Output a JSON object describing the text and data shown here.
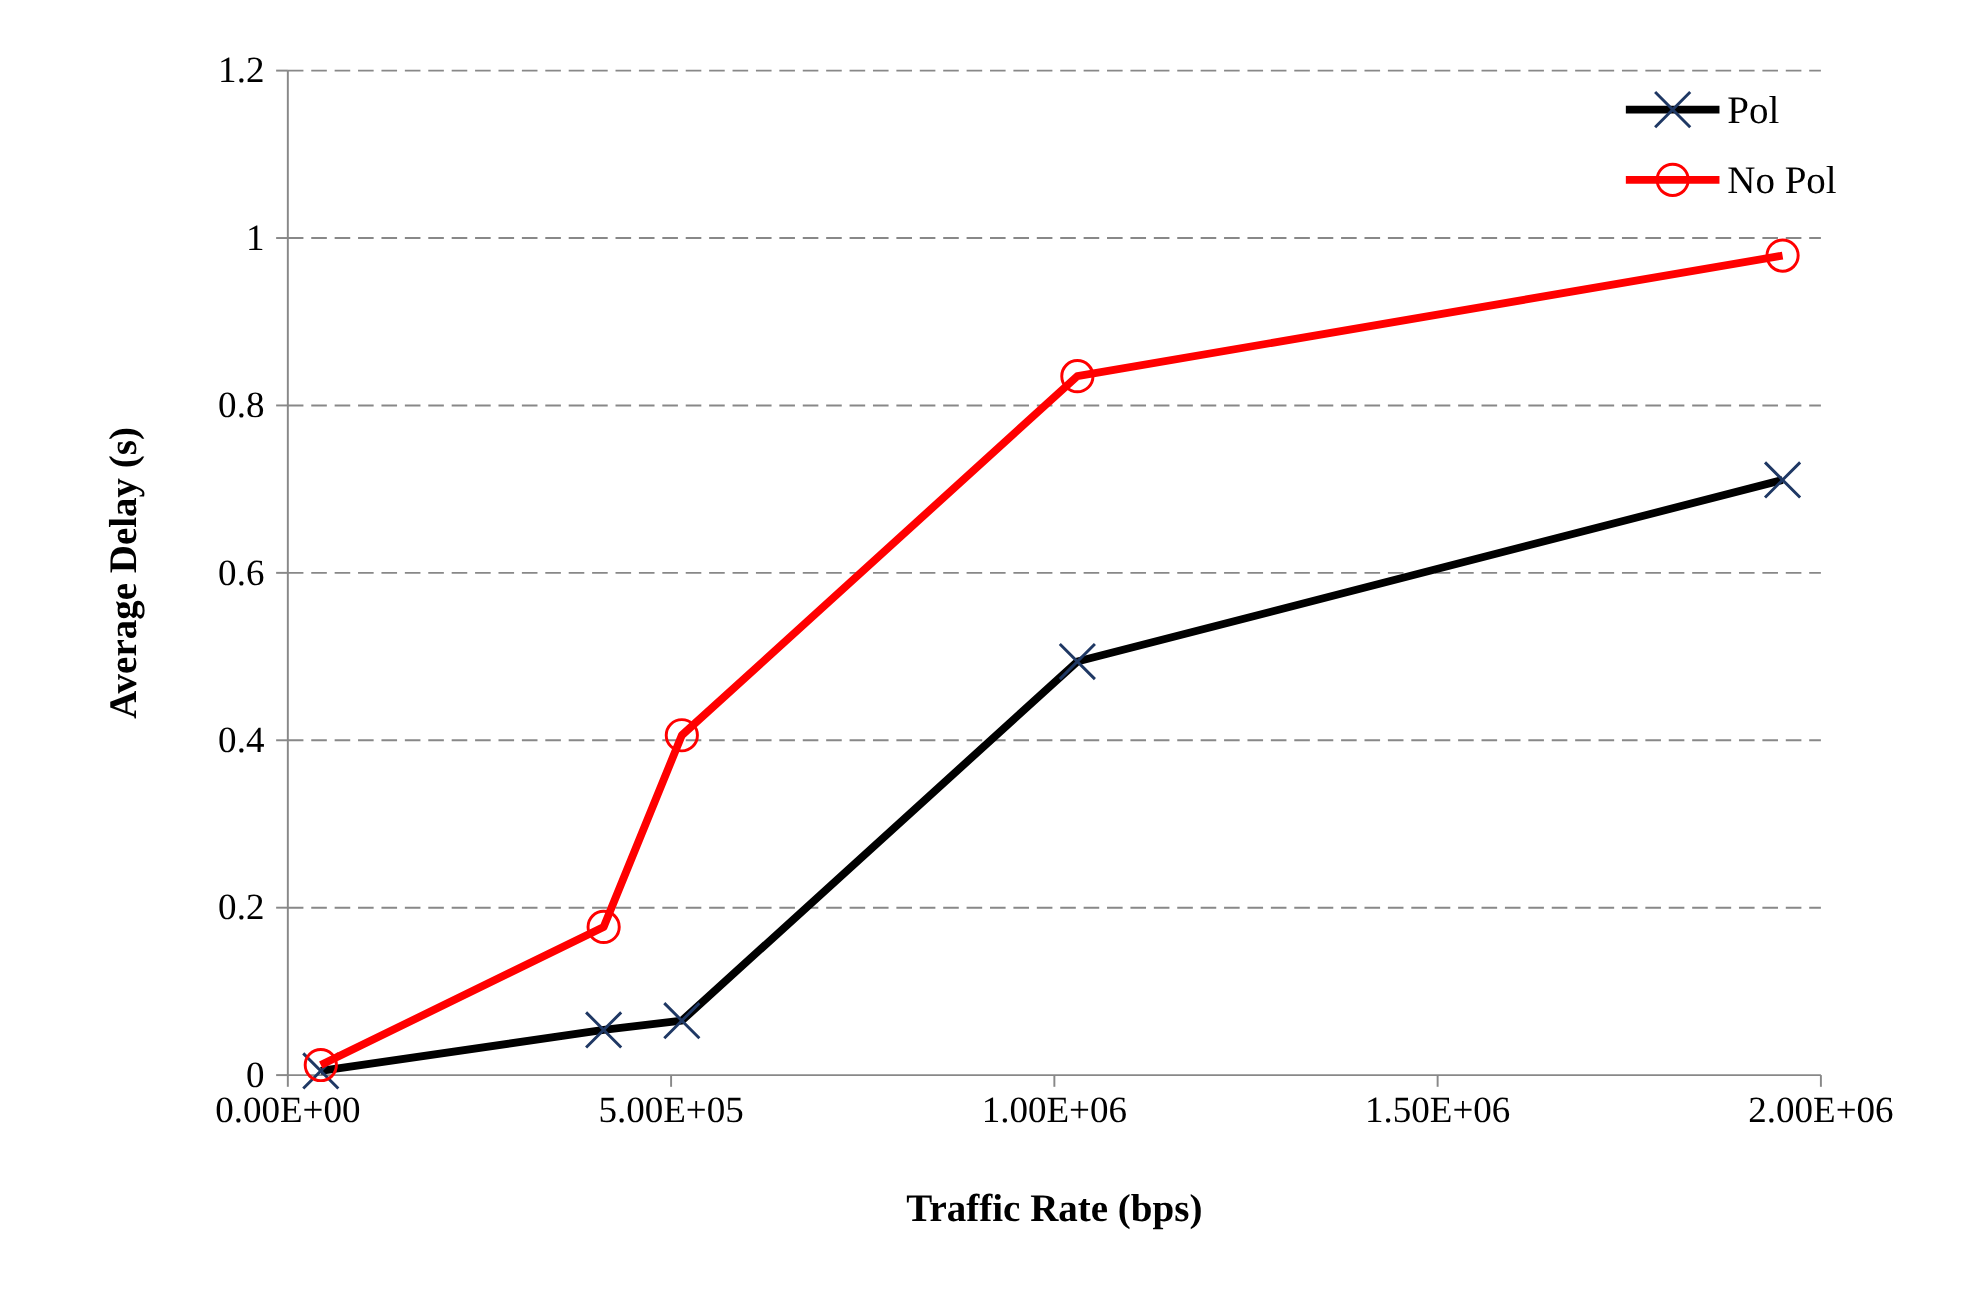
{
  "chart_data": {
    "type": "line",
    "xlabel": "Traffic Rate (bps)",
    "ylabel": "Average Delay (s)",
    "xlim": [
      0,
      2000000
    ],
    "xticks": [
      {
        "value": 0,
        "label": "0.00E+00"
      },
      {
        "value": 500000,
        "label": "5.00E+05"
      },
      {
        "value": 1000000,
        "label": "1.00E+06"
      },
      {
        "value": 1500000,
        "label": "1.50E+06"
      },
      {
        "value": 2000000,
        "label": "2.00E+06"
      }
    ],
    "ylim": [
      0,
      1.2
    ],
    "yticks": [
      0,
      0.2,
      0.4,
      0.6,
      0.8,
      1,
      1.2
    ],
    "grid": "y",
    "legend": "top right",
    "series": [
      {
        "name": "Pol",
        "color": "#000000",
        "marker": "cross",
        "x": [
          43000,
          412000,
          514000,
          1030000,
          1950000
        ],
        "values": [
          0.005,
          0.054,
          0.065,
          0.494,
          0.711
        ]
      },
      {
        "name": "No Pol",
        "color": "#ff0000",
        "marker": "circle",
        "x": [
          43000,
          412000,
          514000,
          1030000,
          1950000
        ],
        "values": [
          0.012,
          0.177,
          0.406,
          0.835,
          0.979
        ]
      }
    ]
  }
}
